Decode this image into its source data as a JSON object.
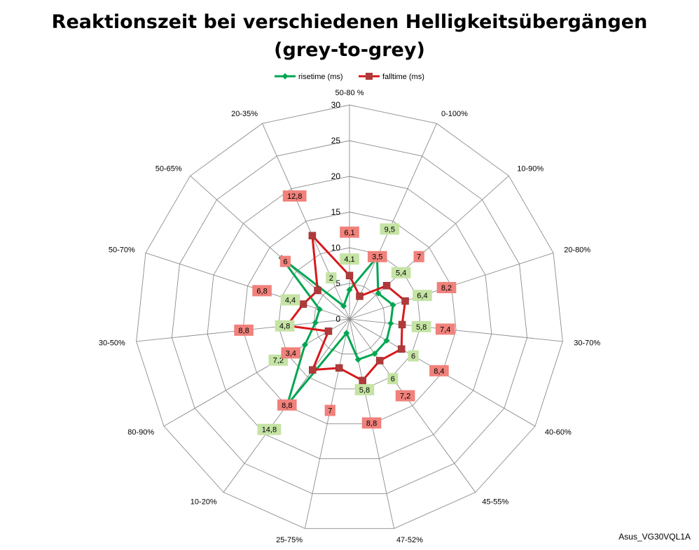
{
  "title": {
    "line1": "Reaktionszeit bei verschiedenen Helligkeitsübergängen",
    "line2": "(grey-to-grey)"
  },
  "source_label": "Asus_VG30VQL1A",
  "chart_data": {
    "type": "radar",
    "categories": [
      "50-80 %",
      "0-100%",
      "10-90%",
      "20-80%",
      "30-70%",
      "40-60%",
      "45-55%",
      "47-52%",
      "25-75%",
      "10-20%",
      "80-90%",
      "30-50%",
      "50-70%",
      "50-65%",
      "20-35%"
    ],
    "rlim": [
      0,
      30
    ],
    "r_ticks": [
      0,
      5,
      10,
      15,
      20,
      25,
      30
    ],
    "r_tick_labels": [
      "0",
      "5",
      "10",
      "15",
      "20",
      "25",
      "30"
    ],
    "grid": true,
    "legend_position": "top",
    "series": [
      {
        "name": "risetime (ms)",
        "color": "#00a651",
        "marker": "diamond",
        "label_bg": "#c5e3a4",
        "values": [
          4.1,
          9.5,
          5.4,
          6.4,
          5.8,
          6,
          6,
          5.8,
          2,
          14.8,
          7.2,
          4.8,
          4.4,
          12.8,
          2
        ],
        "labels": [
          "4,1",
          "9,5",
          "5,4",
          "6,4",
          "5,8",
          "6",
          "6",
          "5,8",
          "",
          "14,8",
          "7,2",
          "4,8",
          "4,4",
          "",
          "2"
        ]
      },
      {
        "name": "falltime (ms)",
        "color": "#d7191c",
        "marker": "square",
        "label_bg": "#f0817b",
        "values": [
          6.1,
          3.5,
          7,
          8.2,
          7.4,
          8.4,
          7.2,
          8.8,
          7,
          8.8,
          3.4,
          8.8,
          6.8,
          6,
          12.8
        ],
        "labels": [
          "6,1",
          "3,5",
          "7",
          "8,2",
          "7,4",
          "8,4",
          "7,2",
          "8,8",
          "7",
          "8,8",
          "3,4",
          "8,8",
          "6,8",
          "6",
          "12,8"
        ]
      }
    ]
  }
}
